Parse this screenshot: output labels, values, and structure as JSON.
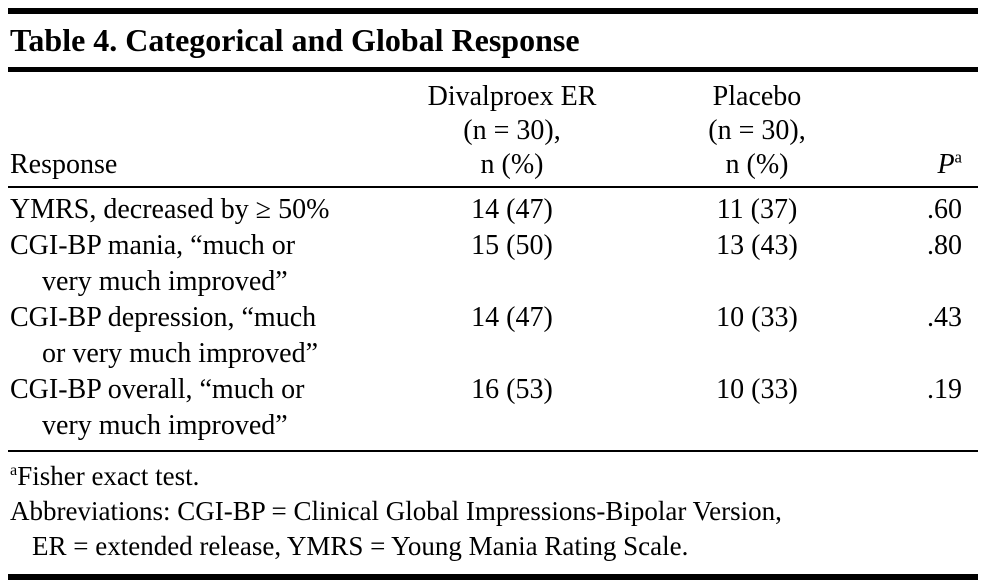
{
  "table": {
    "title": "Table 4. Categorical and Global Response",
    "headers": {
      "response": "Response",
      "divalproex": [
        "Divalproex ER",
        "(n = 30),",
        "n (%)"
      ],
      "placebo": [
        "Placebo",
        "(n = 30),",
        "n (%)"
      ],
      "p": "P",
      "p_sup": "a"
    },
    "rows": [
      {
        "line1": "YMRS, decreased by ≥ 50%",
        "line2": "",
        "divalproex": "14 (47)",
        "placebo": "11 (37)",
        "p": ".60"
      },
      {
        "line1": "CGI-BP mania, “much or",
        "line2": "very much improved”",
        "divalproex": "15 (50)",
        "placebo": "13 (43)",
        "p": ".80"
      },
      {
        "line1": "CGI-BP depression, “much",
        "line2": "or very much improved”",
        "divalproex": "14 (47)",
        "placebo": "10 (33)",
        "p": ".43"
      },
      {
        "line1": "CGI-BP overall, “much or",
        "line2": "very much improved”",
        "divalproex": "16 (53)",
        "placebo": "10 (33)",
        "p": ".19"
      }
    ],
    "footnotes": {
      "fisher_sup": "a",
      "fisher": "Fisher exact test.",
      "abbrev_line1": "Abbreviations: CGI-BP = Clinical Global Impressions-Bipolar Version,",
      "abbrev_line2": "ER = extended release, YMRS = Young Mania Rating Scale."
    }
  }
}
